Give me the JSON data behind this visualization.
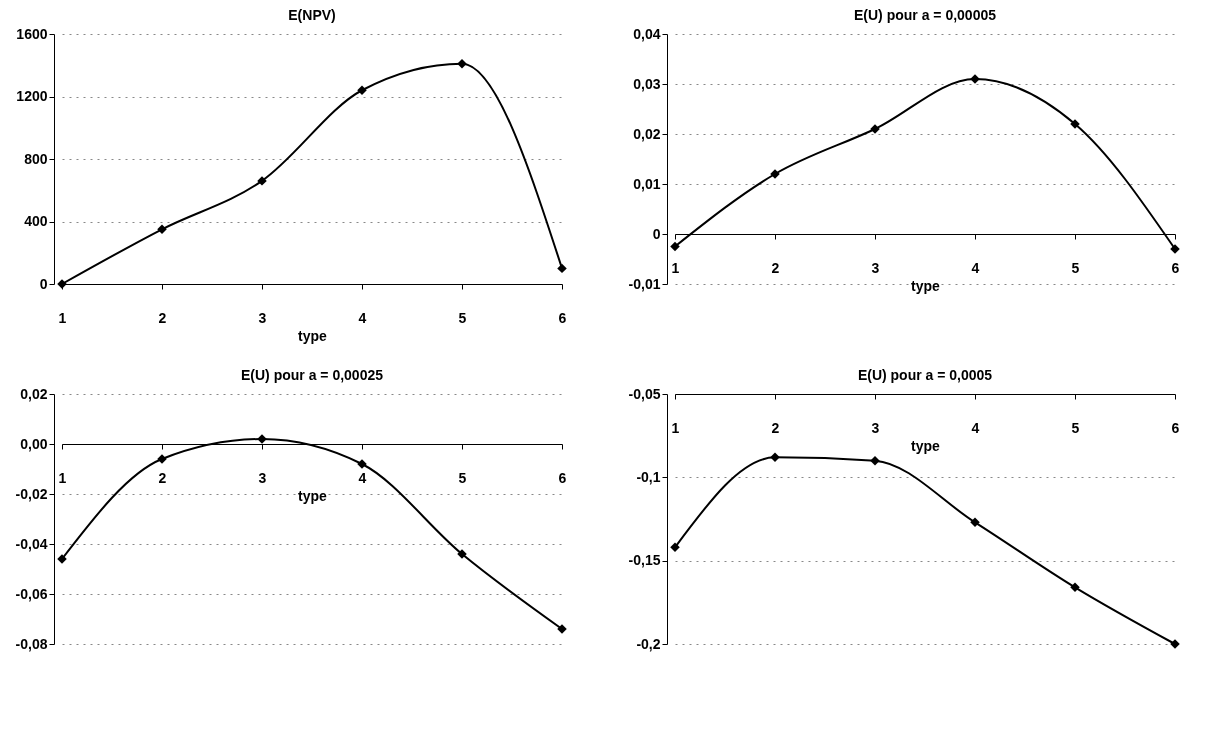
{
  "chart_data": [
    {
      "type": "line",
      "title": "E(NPV)",
      "xlabel": "type",
      "x": [
        1,
        2,
        3,
        4,
        5,
        6
      ],
      "xlim": [
        1,
        6
      ],
      "xticks": [
        1,
        2,
        3,
        4,
        5,
        6
      ],
      "ylim": [
        0,
        1600
      ],
      "yticks": [
        0,
        400,
        800,
        1200,
        1600
      ],
      "grid": "y",
      "marker": "diamond",
      "line_style": "solid",
      "series": [
        {
          "color": "#000000",
          "values": [
            0,
            350,
            660,
            1240,
            1410,
            100
          ]
        }
      ]
    },
    {
      "type": "line",
      "title": "E(U) pour a = 0,00005",
      "xlabel": "type",
      "x": [
        1,
        2,
        3,
        4,
        5,
        6
      ],
      "xlim": [
        1,
        6
      ],
      "xticks": [
        1,
        2,
        3,
        4,
        5,
        6
      ],
      "ylim": [
        -0.01,
        0.04
      ],
      "yticks": [
        {
          "value": -0.01,
          "label": "-0,01"
        },
        0,
        {
          "value": 0.01,
          "label": "0,01"
        },
        {
          "value": 0.02,
          "label": "0,02"
        },
        {
          "value": 0.03,
          "label": "0,03"
        },
        {
          "value": 0.04,
          "label": "0,04"
        }
      ],
      "grid": "y",
      "marker": "diamond",
      "line_style": "solid",
      "series": [
        {
          "color": "#000000",
          "values": [
            -0.0025,
            0.012,
            0.021,
            0.031,
            0.022,
            -0.003
          ]
        }
      ]
    },
    {
      "type": "line",
      "title": "E(U) pour a = 0,00025",
      "xlabel": "type",
      "x": [
        1,
        2,
        3,
        4,
        5,
        6
      ],
      "xlim": [
        1,
        6
      ],
      "xticks": [
        1,
        2,
        3,
        4,
        5,
        6
      ],
      "ylim": [
        -0.08,
        0.02
      ],
      "yticks": [
        {
          "value": -0.08,
          "label": "-0,08"
        },
        {
          "value": -0.06,
          "label": "-0,06"
        },
        {
          "value": -0.04,
          "label": "-0,04"
        },
        {
          "value": -0.02,
          "label": "-0,02"
        },
        {
          "value": 0,
          "label": "0,00"
        },
        {
          "value": 0.02,
          "label": "0,02"
        }
      ],
      "grid": "y",
      "marker": "diamond",
      "line_style": "solid",
      "series": [
        {
          "color": "#000000",
          "values": [
            -0.046,
            -0.006,
            0.002,
            -0.008,
            -0.044,
            -0.074
          ]
        }
      ]
    },
    {
      "type": "line",
      "title": "E(U) pour a = 0,0005",
      "xlabel": "type",
      "x": [
        1,
        2,
        3,
        4,
        5,
        6
      ],
      "xlim": [
        1,
        6
      ],
      "xticks": [
        1,
        2,
        3,
        4,
        5,
        6
      ],
      "ylim": [
        -0.2,
        -0.05
      ],
      "yticks": [
        {
          "value": -0.2,
          "label": "-0,2"
        },
        {
          "value": -0.15,
          "label": "-0,15"
        },
        {
          "value": -0.1,
          "label": "-0,1"
        },
        {
          "value": -0.05,
          "label": "-0,05"
        }
      ],
      "grid": "y",
      "marker": "diamond",
      "line_style": "solid",
      "series": [
        {
          "color": "#000000",
          "values": [
            -0.142,
            -0.088,
            -0.09,
            -0.127,
            -0.166,
            -0.2
          ]
        }
      ]
    }
  ]
}
